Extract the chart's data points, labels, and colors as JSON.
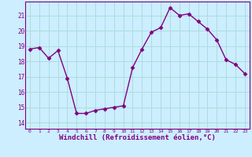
{
  "x": [
    0,
    1,
    2,
    3,
    4,
    5,
    6,
    7,
    8,
    9,
    10,
    11,
    12,
    13,
    14,
    15,
    16,
    17,
    18,
    19,
    20,
    21,
    22,
    23
  ],
  "y": [
    18.8,
    18.9,
    18.2,
    18.7,
    16.9,
    14.6,
    14.6,
    14.8,
    14.9,
    15.0,
    15.1,
    17.6,
    18.8,
    19.9,
    20.2,
    21.5,
    21.0,
    21.1,
    20.6,
    20.1,
    19.4,
    18.1,
    17.8,
    17.2
  ],
  "line_color": "#800080",
  "marker": "D",
  "markersize": 2.5,
  "linewidth": 1.0,
  "bg_color": "#cceeff",
  "grid_color": "#aadddd",
  "tick_color": "#800080",
  "xlabel": "Windchill (Refroidissement éolien,°C)",
  "xlabel_fontsize": 6.5,
  "ylabel_ticks": [
    14,
    15,
    16,
    17,
    18,
    19,
    20,
    21
  ],
  "xlabel_ticks": [
    0,
    1,
    2,
    3,
    4,
    5,
    6,
    7,
    8,
    9,
    10,
    11,
    12,
    13,
    14,
    15,
    16,
    17,
    18,
    19,
    20,
    21,
    22,
    23
  ],
  "ylim": [
    13.6,
    21.9
  ],
  "xlim": [
    -0.5,
    23.5
  ]
}
